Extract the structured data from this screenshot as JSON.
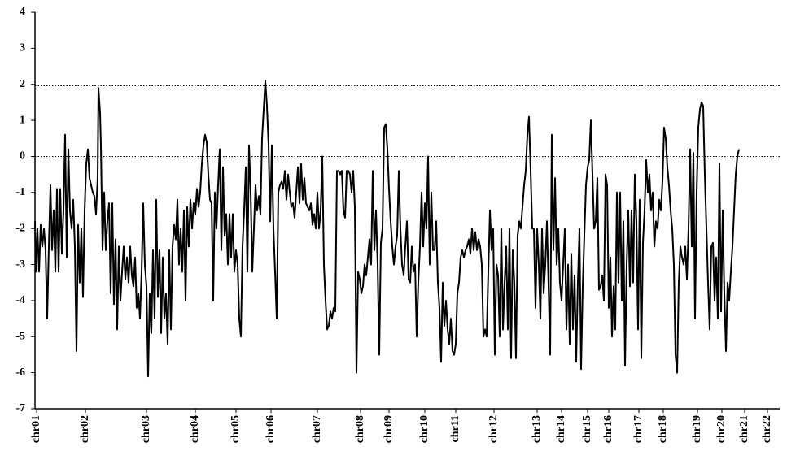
{
  "chart_data": {
    "type": "line",
    "x": [
      0,
      1,
      3,
      5,
      7,
      9,
      11,
      13,
      15,
      17,
      19,
      21,
      23,
      25,
      27,
      29,
      31,
      33,
      35,
      37,
      39,
      41,
      43,
      45,
      47,
      49,
      51,
      53,
      55,
      57,
      59,
      61,
      63,
      65,
      67,
      69,
      71,
      73,
      75,
      77,
      78,
      80,
      81,
      83,
      85,
      87,
      89,
      91,
      93,
      95,
      97,
      99,
      101,
      103,
      105,
      107,
      109,
      111,
      113,
      115,
      117,
      119,
      121,
      123,
      125,
      127,
      129,
      131,
      133,
      135,
      137,
      139,
      141,
      143,
      145,
      147,
      149,
      151,
      153,
      155,
      157,
      159,
      161,
      163,
      165,
      167,
      169,
      171,
      173,
      175,
      177,
      179,
      181,
      183,
      185,
      187,
      189,
      191,
      193,
      195,
      197,
      199,
      201,
      203,
      205,
      207,
      209,
      211,
      213,
      215,
      217,
      219,
      221,
      223,
      225,
      227,
      229,
      231,
      233,
      235,
      237,
      239,
      241,
      243,
      245,
      247,
      249,
      251,
      253,
      255,
      257,
      259,
      261,
      263,
      265,
      267,
      269,
      271,
      273,
      275,
      277,
      279,
      281,
      283,
      285,
      287,
      289,
      291,
      293,
      295,
      297,
      299,
      301,
      303,
      305,
      307,
      309,
      311,
      313,
      315,
      317,
      319,
      321,
      323,
      325,
      327,
      329,
      331,
      333,
      335,
      337,
      339,
      341,
      343,
      345,
      347,
      349,
      351,
      353,
      355,
      357,
      359,
      361,
      363,
      365,
      367,
      369,
      371,
      373,
      375,
      377,
      379,
      381,
      383,
      385,
      387,
      389,
      391,
      393,
      395,
      397,
      399,
      401,
      403,
      405,
      407,
      409,
      411,
      413,
      415,
      417,
      419,
      421,
      423,
      425,
      427,
      429,
      431,
      433,
      435,
      437,
      439,
      441,
      443,
      445,
      447,
      449,
      451,
      453,
      455,
      457,
      459,
      461,
      463,
      465,
      467,
      469,
      471,
      473,
      475,
      477,
      479,
      481,
      483,
      485,
      487,
      489,
      491,
      493,
      495,
      497,
      499,
      501,
      503,
      505,
      507,
      509,
      511,
      513,
      515,
      517,
      519,
      521,
      523,
      525,
      527,
      529,
      531,
      533,
      535,
      537,
      539,
      541,
      543,
      545,
      547,
      549,
      551,
      553,
      555,
      557,
      559,
      561,
      563,
      565,
      567,
      569,
      571,
      573,
      575,
      577,
      579,
      581,
      583,
      585,
      587,
      589,
      591,
      593,
      595,
      597,
      599,
      601,
      603,
      605,
      607,
      609,
      611,
      613,
      615,
      617,
      619,
      621,
      623,
      625,
      627,
      629,
      631,
      633,
      635,
      637,
      639,
      641,
      643,
      645,
      647,
      649,
      651,
      653,
      655,
      657,
      659,
      661,
      663,
      665,
      667,
      669,
      671,
      673,
      675,
      677,
      679,
      681,
      683,
      685,
      687,
      689,
      691,
      693,
      695,
      697,
      699,
      701,
      703,
      705,
      707,
      709,
      711,
      713,
      715,
      717,
      719,
      721,
      723,
      725,
      727,
      729,
      731,
      733,
      735,
      737,
      739,
      741,
      743,
      745,
      747,
      749,
      751,
      753,
      755,
      757,
      759,
      761,
      763,
      765,
      767,
      769,
      771,
      773,
      775,
      777,
      779,
      781,
      783,
      785,
      787,
      789,
      791,
      793,
      795,
      797,
      799,
      801,
      803,
      805,
      807,
      809,
      811,
      813,
      815,
      817,
      819,
      821,
      823,
      825,
      827,
      829,
      831,
      833,
      835,
      837,
      839,
      841,
      843,
      845,
      847,
      849,
      851,
      853,
      855,
      857,
      859,
      861,
      863,
      865
    ],
    "series": [
      {
        "color": "#000000",
        "values": [
          -1.8,
          -3.2,
          -2.0,
          -3.2,
          -1.9,
          -2.5,
          -2.0,
          -2.6,
          -4.5,
          -2.5,
          -0.8,
          -2.6,
          -1.5,
          -3.2,
          -0.9,
          -3.2,
          -0.9,
          -2.7,
          -1.5,
          0.6,
          -2.8,
          0.2,
          -1.5,
          -2.0,
          -1.2,
          -2.5,
          -5.4,
          -1.9,
          -3.5,
          -2.0,
          -3.9,
          -1.5,
          -0.2,
          0.2,
          -0.6,
          -0.8,
          -1.0,
          -1.1,
          -1.6,
          -0.6,
          1.9,
          1.2,
          0.3,
          -2.6,
          -1.0,
          -2.6,
          -1.8,
          -1.3,
          -3.8,
          -1.3,
          -4.1,
          -2.3,
          -4.8,
          -2.5,
          -4.0,
          -3.2,
          -2.5,
          -3.4,
          -2.8,
          -3.5,
          -2.5,
          -3.3,
          -3.6,
          -2.8,
          -4.2,
          -3.8,
          -4.5,
          -3.2,
          -1.3,
          -3.0,
          -3.6,
          -6.1,
          -3.8,
          -4.9,
          -2.6,
          -4.5,
          -1.2,
          -3.9,
          -2.6,
          -4.9,
          -2.8,
          -4.5,
          -3.8,
          -5.2,
          -2.6,
          -4.8,
          -2.5,
          -1.9,
          -2.3,
          -1.2,
          -3.0,
          -2.0,
          -3.2,
          -1.5,
          -4.0,
          -1.4,
          -2.5,
          -1.2,
          -2.0,
          -1.3,
          -1.6,
          -0.9,
          -1.4,
          -1.0,
          -0.2,
          0.3,
          0.6,
          0.4,
          -0.5,
          -1.2,
          -1.3,
          -4.0,
          -1.0,
          -2.0,
          -0.8,
          0.2,
          -2.6,
          -0.3,
          -2.2,
          -1.6,
          -3.0,
          -1.6,
          -2.8,
          -1.6,
          -3.2,
          -2.6,
          -3.0,
          -4.5,
          -5.0,
          -2.5,
          -1.5,
          -0.3,
          -3.2,
          0.3,
          -1.0,
          -3.2,
          -2.0,
          -0.8,
          -1.5,
          -1.1,
          -1.6,
          0.5,
          1.3,
          2.1,
          1.4,
          0.3,
          -1.8,
          0.3,
          -2.0,
          -3.2,
          -4.5,
          -1.0,
          -0.8,
          -0.7,
          -0.9,
          -0.4,
          -1.2,
          -0.5,
          -1.0,
          -1.4,
          -1.3,
          -1.7,
          -1.0,
          -0.3,
          -1.3,
          -0.2,
          -1.2,
          -0.6,
          -1.3,
          -1.4,
          -1.5,
          -1.3,
          -1.9,
          -1.6,
          -2.0,
          -1.0,
          -2.0,
          -1.5,
          0.0,
          -3.0,
          -4.0,
          -4.8,
          -4.7,
          -4.3,
          -4.5,
          -4.2,
          -4.3,
          -0.4,
          -0.4,
          -0.5,
          -0.4,
          -1.5,
          -1.7,
          -0.4,
          -0.4,
          -0.5,
          -1.0,
          -0.4,
          -1.4,
          -6.0,
          -3.2,
          -3.4,
          -3.8,
          -3.6,
          -3.0,
          -3.3,
          -2.8,
          -2.3,
          -3.0,
          -0.4,
          -2.6,
          -1.5,
          -3.0,
          -5.5,
          -2.4,
          -2.0,
          0.8,
          0.9,
          0.2,
          -0.9,
          -1.8,
          -2.5,
          -3.0,
          -2.5,
          -2.2,
          -0.4,
          -2.0,
          -3.0,
          -3.3,
          -2.5,
          -1.8,
          -3.4,
          -3.5,
          -2.5,
          -3.2,
          -3.0,
          -5.0,
          -3.5,
          -2.5,
          -1.0,
          -2.5,
          -1.3,
          -2.0,
          0.0,
          -3.0,
          -1.0,
          -2.6,
          -2.6,
          -1.8,
          -3.5,
          -4.2,
          -5.7,
          -3.5,
          -4.7,
          -4.0,
          -4.8,
          -5.2,
          -4.5,
          -5.4,
          -5.5,
          -5.2,
          -3.8,
          -3.5,
          -2.8,
          -2.6,
          -2.8,
          -2.6,
          -2.5,
          -2.3,
          -2.7,
          -2.0,
          -2.6,
          -2.1,
          -2.6,
          -2.3,
          -2.5,
          -3.0,
          -5.0,
          -4.8,
          -5.0,
          -3.2,
          -1.5,
          -2.6,
          -2.0,
          -5.5,
          -3.0,
          -3.3,
          -5.0,
          -2.0,
          -4.8,
          -3.5,
          -2.5,
          -4.8,
          -2.0,
          -5.6,
          -2.6,
          -3.5,
          -5.6,
          -2.2,
          -1.8,
          -2.0,
          -1.4,
          -0.8,
          -0.4,
          0.6,
          1.1,
          -0.4,
          -2.0,
          -2.0,
          -4.2,
          -2.0,
          -3.0,
          -4.5,
          -2.0,
          -3.8,
          -3.0,
          -1.8,
          -3.6,
          -5.5,
          0.6,
          -2.6,
          -0.6,
          -3.0,
          -2.0,
          -3.5,
          -4.0,
          -3.0,
          -2.0,
          -4.8,
          -3.0,
          -5.2,
          -2.7,
          -4.8,
          -3.3,
          -5.7,
          -3.5,
          -2.0,
          -5.9,
          -3.6,
          -2.2,
          -0.8,
          -0.3,
          -0.1,
          1.0,
          -0.5,
          -2.0,
          -1.8,
          -0.6,
          -3.7,
          -3.6,
          -3.3,
          -4.0,
          -0.5,
          -0.8,
          -4.2,
          -2.8,
          -5.0,
          -3.6,
          -4.8,
          -1.0,
          -3.5,
          -1.0,
          -4.0,
          -1.8,
          -5.8,
          -3.0,
          -1.5,
          -3.6,
          -1.5,
          -3.5,
          -0.5,
          -1.8,
          -4.8,
          -1.2,
          -5.6,
          -2.4,
          -1.5,
          -0.1,
          -1.0,
          -0.5,
          -1.5,
          -1.0,
          -2.5,
          -1.8,
          -2.0,
          -1.2,
          -1.5,
          -0.7,
          0.8,
          0.5,
          -0.3,
          -0.8,
          -1.5,
          -2.0,
          -3.0,
          -5.5,
          -6.0,
          -3.5,
          -2.5,
          -2.8,
          -3.0,
          -2.5,
          -3.4,
          -2.0,
          0.2,
          -2.5,
          0.1,
          -4.5,
          -1.0,
          0.8,
          1.3,
          1.5,
          1.4,
          -0.5,
          -2.0,
          -3.5,
          -4.8,
          -2.5,
          -2.4,
          -4.0,
          -2.8,
          -4.5,
          -0.2,
          -4.3,
          -1.5,
          -3.8,
          -5.4,
          -3.5,
          -4.0,
          -3.2,
          -2.5,
          -1.5,
          -0.5,
          0.0,
          0.2
        ]
      }
    ],
    "xlim": [
      0,
      915
    ],
    "xticks": [
      {
        "value": 2,
        "label": "chr01"
      },
      {
        "value": 62,
        "label": "chr02"
      },
      {
        "value": 137,
        "label": "chr03"
      },
      {
        "value": 197,
        "label": "chr04"
      },
      {
        "value": 247,
        "label": "chr05"
      },
      {
        "value": 290,
        "label": "chr06"
      },
      {
        "value": 347,
        "label": "chr07"
      },
      {
        "value": 400,
        "label": "chr08"
      },
      {
        "value": 435,
        "label": "chr09"
      },
      {
        "value": 479,
        "label": "chr10"
      },
      {
        "value": 517,
        "label": "chr11"
      },
      {
        "value": 564,
        "label": "chr12"
      },
      {
        "value": 617,
        "label": "chr13"
      },
      {
        "value": 647,
        "label": "chr14"
      },
      {
        "value": 679,
        "label": "chr15"
      },
      {
        "value": 705,
        "label": "chr16"
      },
      {
        "value": 742,
        "label": "chr17"
      },
      {
        "value": 772,
        "label": "chr18"
      },
      {
        "value": 814,
        "label": "chr19"
      },
      {
        "value": 844,
        "label": "chr20"
      },
      {
        "value": 872,
        "label": "chr21"
      },
      {
        "value": 900,
        "label": "chr22"
      }
    ],
    "ylim": [
      -7,
      4
    ],
    "yticks": [
      -7,
      -6,
      -5,
      -4,
      -3,
      -2,
      -1,
      0,
      1,
      2,
      3,
      4
    ],
    "reference_lines": [
      1.96,
      0
    ]
  }
}
